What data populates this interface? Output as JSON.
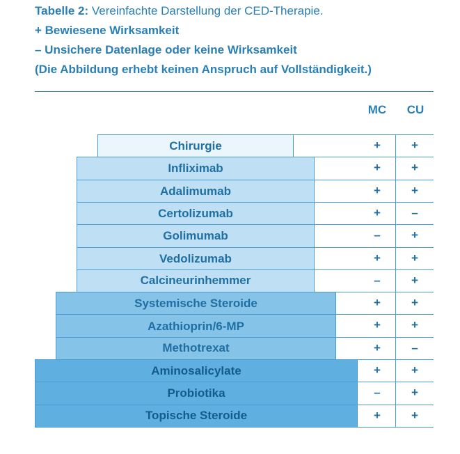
{
  "caption": {
    "title_bold": "Tabelle 2:",
    "title_rest": " Vereinfachte Darstellung der CED-Therapie.",
    "legend_plus": "+ Bewiesene Wirksamkeit",
    "legend_minus": "– Unsichere Datenlage oder keine Wirksamkeit",
    "disclaimer": "(Die Abbildung erhebt keinen Anspruch auf Vollständigkeit.)"
  },
  "columns": {
    "mc": "MC",
    "cu": "CU"
  },
  "rows": [
    {
      "label": "Chirurgie",
      "mc": "+",
      "cu": "+"
    },
    {
      "label": "Infliximab",
      "mc": "+",
      "cu": "+"
    },
    {
      "label": "Adalimumab",
      "mc": "+",
      "cu": "+"
    },
    {
      "label": "Certolizumab",
      "mc": "+",
      "cu": "–"
    },
    {
      "label": "Golimumab",
      "mc": "–",
      "cu": "+"
    },
    {
      "label": "Vedolizumab",
      "mc": "+",
      "cu": "+"
    },
    {
      "label": "Calcineurinhemmer",
      "mc": "–",
      "cu": "+"
    },
    {
      "label": "Systemische Steroide",
      "mc": "+",
      "cu": "+"
    },
    {
      "label": "Azathioprin/6-MP",
      "mc": "+",
      "cu": "+"
    },
    {
      "label": "Methotrexat",
      "mc": "+",
      "cu": "–"
    },
    {
      "label": "Aminosalicylate",
      "mc": "+",
      "cu": "+"
    },
    {
      "label": "Probiotika",
      "mc": "–",
      "cu": "+"
    },
    {
      "label": "Topische Steroide",
      "mc": "+",
      "cu": "+"
    }
  ]
}
